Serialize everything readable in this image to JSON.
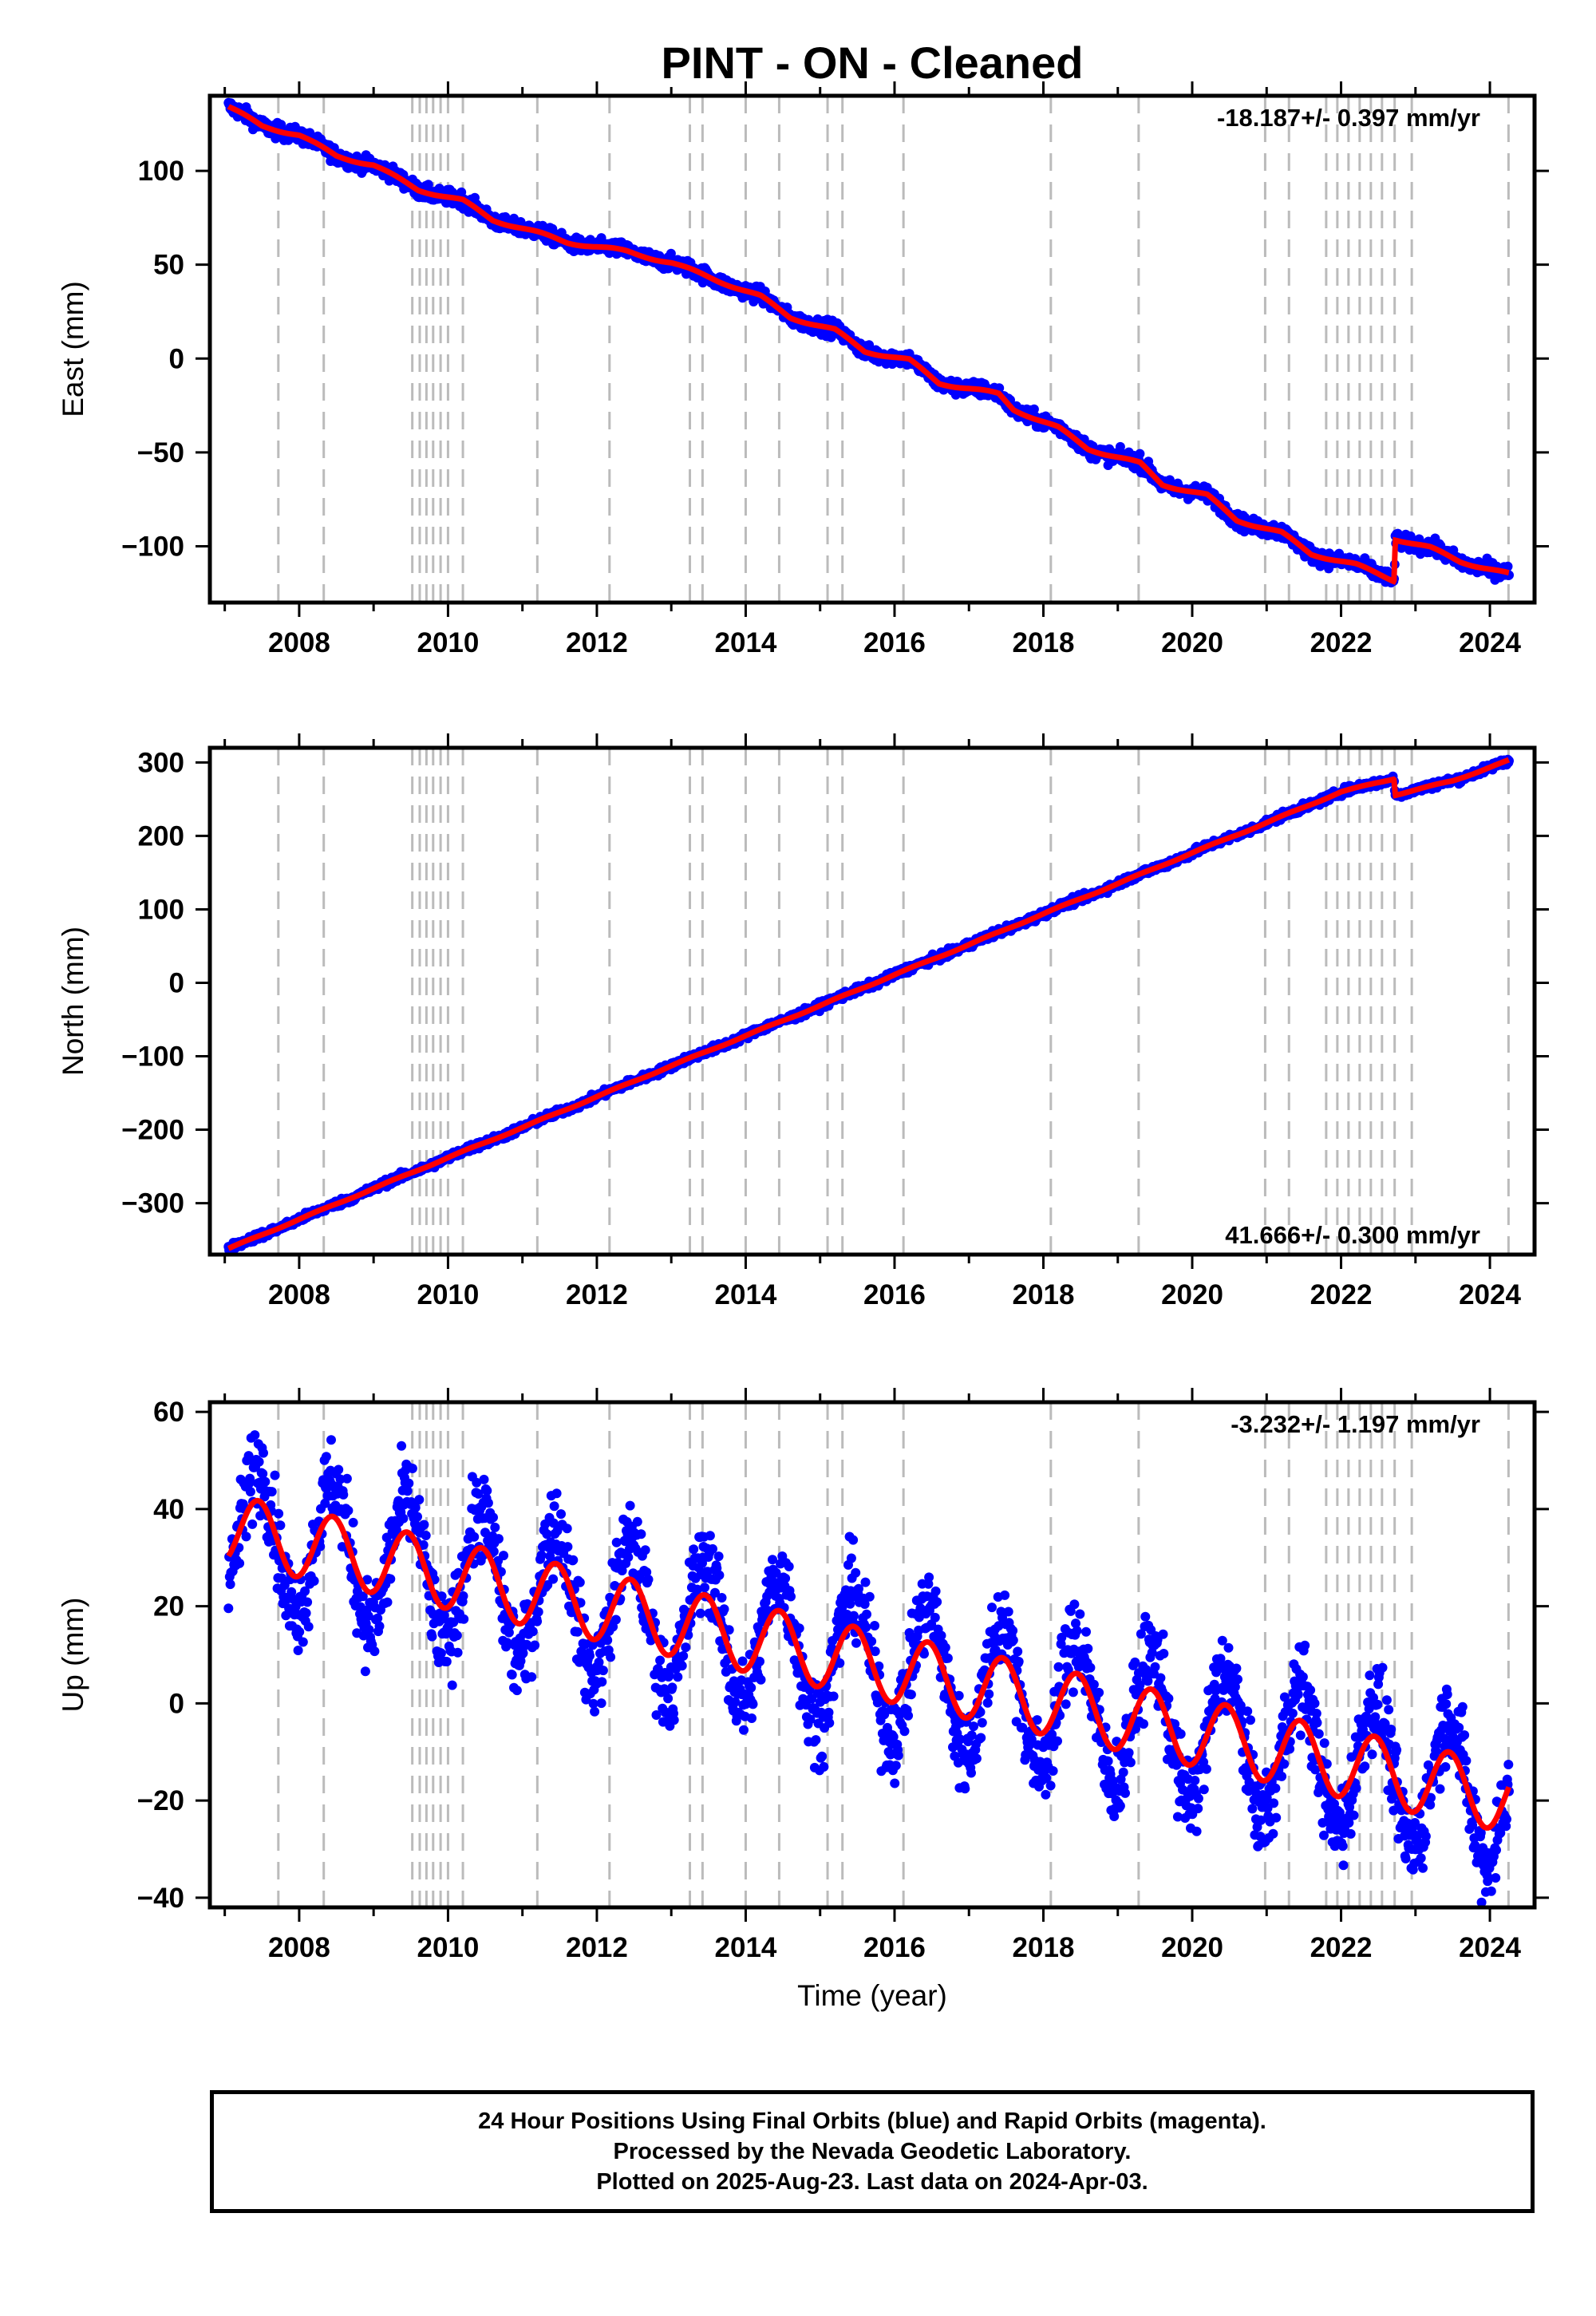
{
  "chart_data": {
    "type": "scatter",
    "title": "PINT  - ON - Cleaned",
    "xlabel": "Time (year)",
    "xlim": [
      2006.8,
      2024.6
    ],
    "xticks": [
      2008,
      2010,
      2012,
      2014,
      2016,
      2018,
      2020,
      2022,
      2024
    ],
    "grid": false,
    "series_colors": {
      "daily_positions": "#0000ff",
      "model_fit": "#ff0000",
      "event_lines": "#bbbbbb"
    },
    "event_lines": [
      2007.72,
      2008.33,
      2009.52,
      2009.62,
      2009.71,
      2009.8,
      2009.9,
      2010.0,
      2010.2,
      2011.2,
      2012.17,
      2013.25,
      2013.42,
      2014.0,
      2014.45,
      2015.1,
      2015.3,
      2016.12,
      2018.1,
      2019.28,
      2020.98,
      2021.3,
      2021.8,
      2021.95,
      2022.1,
      2022.25,
      2022.4,
      2022.55,
      2022.72,
      2022.95,
      2024.25
    ],
    "panels": [
      {
        "ylabel": "East (mm)",
        "ylim": [
          -130,
          140
        ],
        "yticks": [
          -100,
          -50,
          0,
          50,
          100
        ],
        "rate_label": "-18.187+/- 0.397 mm/yr",
        "rate_position": "top-right",
        "trend": {
          "start_year": 2007.05,
          "start_mm": 134,
          "rate_mm_per_yr": -18.187,
          "end_year": 2024.26
        },
        "seasonal_amplitude_mm": 1.5,
        "scatter_mm": 2.0,
        "offsets": [
          {
            "year": 2022.72,
            "jump_mm": 23
          }
        ],
        "fit_points": [
          [
            2007.05,
            134
          ],
          [
            2007.5,
            124
          ],
          [
            2008.0,
            119
          ],
          [
            2008.5,
            108
          ],
          [
            2009.0,
            103
          ],
          [
            2009.6,
            90
          ],
          [
            2010.2,
            84
          ],
          [
            2010.6,
            74
          ],
          [
            2011.2,
            67
          ],
          [
            2011.6,
            62
          ],
          [
            2012.4,
            57
          ],
          [
            2013.0,
            51
          ],
          [
            2013.6,
            42
          ],
          [
            2014.2,
            33
          ],
          [
            2014.6,
            22
          ],
          [
            2015.2,
            15
          ],
          [
            2015.6,
            4
          ],
          [
            2016.2,
            -1
          ],
          [
            2016.6,
            -13
          ],
          [
            2017.4,
            -19
          ],
          [
            2017.6,
            -27
          ],
          [
            2018.2,
            -37
          ],
          [
            2018.6,
            -48
          ],
          [
            2019.3,
            -56
          ],
          [
            2019.6,
            -67
          ],
          [
            2020.2,
            -73
          ],
          [
            2020.6,
            -86
          ],
          [
            2021.2,
            -93
          ],
          [
            2021.6,
            -104
          ],
          [
            2022.2,
            -110
          ],
          [
            2022.71,
            -118
          ],
          [
            2022.73,
            -96
          ],
          [
            2023.2,
            -101
          ],
          [
            2023.6,
            -108
          ],
          [
            2024.26,
            -115
          ]
        ]
      },
      {
        "ylabel": "North (mm)",
        "ylim": [
          -370,
          320
        ],
        "yticks": [
          -300,
          -200,
          -100,
          0,
          100,
          200,
          300
        ],
        "rate_label": "41.666+/- 0.300 mm/yr",
        "rate_position": "bottom-right",
        "trend": {
          "start_year": 2007.05,
          "start_mm": -362,
          "rate_mm_per_yr": 41.666,
          "end_year": 2024.26
        },
        "seasonal_amplitude_mm": 1.5,
        "scatter_mm": 2.5,
        "offsets": [
          {
            "year": 2022.72,
            "jump_mm": -22
          }
        ],
        "fit_points": [
          [
            2007.05,
            -362
          ],
          [
            2008.0,
            -322
          ],
          [
            2009.0,
            -280
          ],
          [
            2010.0,
            -238
          ],
          [
            2011.0,
            -197
          ],
          [
            2012.0,
            -155
          ],
          [
            2013.0,
            -113
          ],
          [
            2014.0,
            -72
          ],
          [
            2015.0,
            -31
          ],
          [
            2016.0,
            11
          ],
          [
            2017.0,
            52
          ],
          [
            2018.0,
            94
          ],
          [
            2019.0,
            135
          ],
          [
            2020.0,
            177
          ],
          [
            2021.0,
            218
          ],
          [
            2022.0,
            260
          ],
          [
            2022.71,
            278
          ],
          [
            2022.73,
            256
          ],
          [
            2023.5,
            275
          ],
          [
            2024.26,
            303
          ]
        ]
      },
      {
        "ylabel": "Up (mm)",
        "ylim": [
          -42,
          62
        ],
        "yticks": [
          -40,
          -20,
          0,
          20,
          40,
          60
        ],
        "rate_label": "-3.232+/- 1.197 mm/yr",
        "rate_position": "top-right",
        "trend": {
          "start_year": 2007.05,
          "start_mm": 36,
          "rate_mm_per_yr": -3.232,
          "end_year": 2024.26
        },
        "seasonal_amplitude_mm": 7,
        "seasonal_peak_year_fraction": 0.45,
        "scatter_mm": 4.5,
        "offsets": [],
        "fit_points": []
      }
    ]
  },
  "footer": {
    "line1": "24 Hour Positions Using Final Orbits (blue) and Rapid Orbits (magenta).",
    "line2": "Processed by the Nevada Geodetic Laboratory.",
    "line3": "Plotted on 2025-Aug-23. Last data on 2024-Apr-03."
  }
}
